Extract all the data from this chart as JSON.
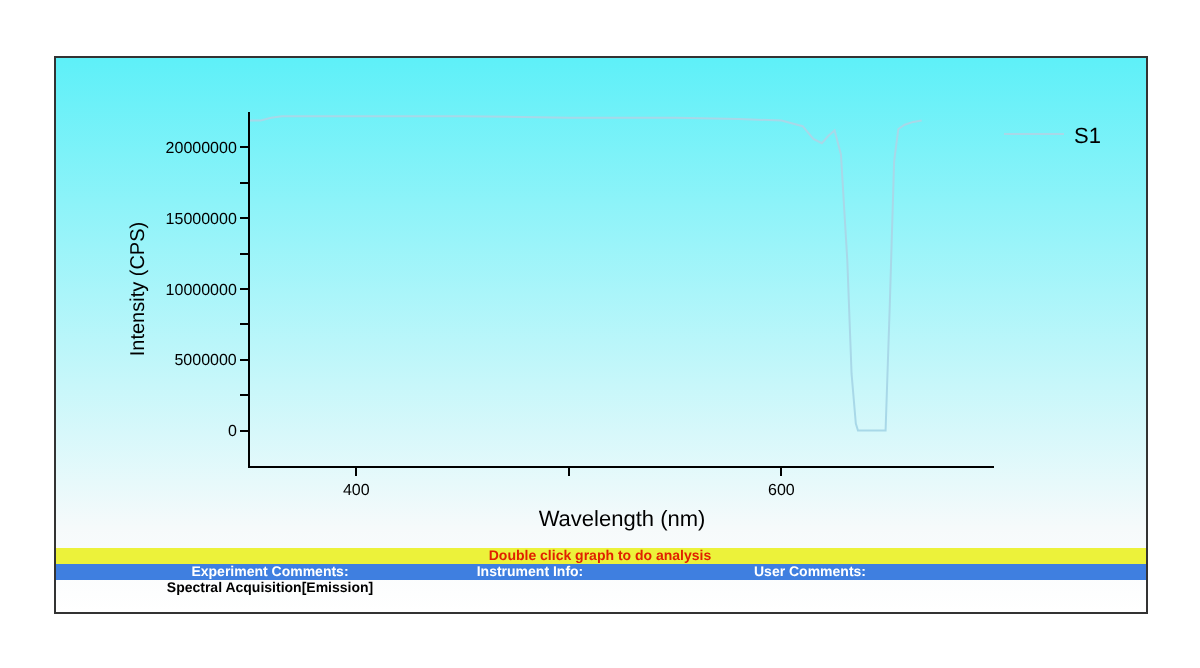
{
  "chart_data": {
    "type": "line",
    "xlabel": "Wavelength (nm)",
    "ylabel": "Intensity (CPS)",
    "xlim": [
      350,
      700
    ],
    "ylim": [
      -2500000,
      22500000
    ],
    "xticks": [
      400,
      {
        "value": 500,
        "label": null
      },
      600
    ],
    "yticks": [
      0,
      {
        "value": 2500000,
        "label": null
      },
      5000000,
      {
        "value": 7500000,
        "label": null
      },
      10000000,
      {
        "value": 12500000,
        "label": null
      },
      15000000,
      {
        "value": 17500000,
        "label": null
      },
      20000000
    ],
    "grid": false,
    "legend": "top right",
    "marker": "none",
    "line_style": "solid",
    "series": [
      {
        "name": "S1",
        "color": "#a8d8e8",
        "x": [
          350,
          355,
          360,
          365,
          380,
          400,
          450,
          500,
          550,
          580,
          600,
          610,
          615,
          619,
          622,
          625,
          628,
          631,
          633,
          635,
          636,
          640,
          645,
          649,
          651,
          653,
          655,
          658,
          662,
          666
        ],
        "values": [
          21900000,
          21900000,
          22100000,
          22200000,
          22200000,
          22200000,
          22200000,
          22100000,
          22100000,
          22000000,
          21900000,
          21500000,
          20600000,
          20300000,
          20800000,
          21200000,
          19500000,
          12000000,
          4000000,
          500000,
          0,
          0,
          0,
          0,
          9000000,
          19000000,
          21300000,
          21600000,
          21800000,
          21900000
        ]
      }
    ],
    "annotations": [
      "Double click graph to do analysis",
      "Experiment Comments:",
      "Instrument Info:",
      "User Comments:",
      "Spectral Acquisition[Emission]"
    ]
  }
}
